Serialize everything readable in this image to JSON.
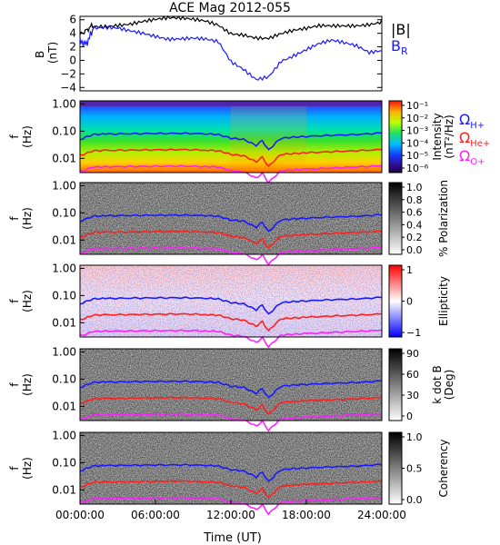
{
  "chart_data": {
    "type": "multi-panel spectrogram",
    "title": "ACE Mag 2012-055",
    "xlabel": "Time (UT)",
    "x_ticks": [
      "00:00:00",
      "06:00:00",
      "12:00:00",
      "18:00:00",
      "24:00:00"
    ],
    "x_range_hours": [
      0,
      24
    ],
    "field_panel": {
      "ylabel_line1": "B",
      "ylabel_line2": "(nT)",
      "y_ticks": [
        "6",
        "4",
        "2",
        "0",
        "−2",
        "−4"
      ],
      "ylim": [
        -4.5,
        6.5
      ],
      "legend": [
        {
          "label": "|B|",
          "color": "#000000"
        },
        {
          "label": "B",
          "subscript": "R",
          "color": "#1a1aff"
        }
      ],
      "series": [
        {
          "name": "|B|",
          "color": "#000000",
          "x": [
            0,
            0.5,
            1,
            2,
            3,
            4,
            5,
            6,
            7,
            8,
            9,
            10,
            11,
            12,
            13,
            14,
            15,
            16,
            17,
            18,
            19,
            20,
            21,
            22,
            23,
            24
          ],
          "values": [
            3.8,
            4.4,
            5.2,
            5.3,
            5.5,
            5.6,
            5.8,
            5.9,
            6.0,
            5.9,
            5.8,
            5.7,
            5.3,
            4.2,
            4.1,
            3.6,
            3.4,
            3.9,
            4.2,
            4.4,
            4.8,
            4.9,
            5.1,
            5.3,
            5.6,
            6.0
          ]
        },
        {
          "name": "B_R",
          "color": "#1a1aff",
          "x": [
            0,
            0.5,
            1,
            2,
            3,
            4,
            5,
            6,
            7,
            8,
            9,
            10,
            11,
            12,
            13,
            14,
            15,
            16,
            17,
            18,
            19,
            20,
            21,
            22,
            23,
            24
          ],
          "values": [
            2.8,
            2.4,
            4.4,
            4.6,
            4.7,
            4.5,
            4.3,
            3.9,
            3.4,
            3.3,
            3.2,
            2.9,
            2.4,
            -0.5,
            -1.5,
            -2.8,
            -2.2,
            0.2,
            1.0,
            1.8,
            2.5,
            2.8,
            2.3,
            1.8,
            0.9,
            1.4
          ]
        }
      ]
    },
    "freq_axis": {
      "ylabel_line1": "f",
      "ylabel_line2": "(Hz)",
      "y_ticks": [
        "1.00",
        "0.10",
        "0.01"
      ],
      "ylim_log": [
        0.003,
        1.3
      ]
    },
    "gyrofrequency_lines": [
      {
        "name": "Ω_H+",
        "symbol": "Ω",
        "sub": "H+",
        "color": "#1a1aff",
        "x": [
          0,
          0.5,
          1,
          2,
          4,
          6,
          8,
          10,
          11,
          12,
          13,
          14,
          14.5,
          15,
          15.5,
          16,
          17,
          18,
          20,
          22,
          24
        ],
        "values": [
          0.05,
          0.06,
          0.075,
          0.078,
          0.08,
          0.082,
          0.083,
          0.08,
          0.075,
          0.055,
          0.05,
          0.03,
          0.045,
          0.02,
          0.035,
          0.055,
          0.06,
          0.064,
          0.07,
          0.075,
          0.085
        ]
      },
      {
        "name": "Ω_He+",
        "symbol": "Ω",
        "sub": "He+",
        "color": "#ff2020",
        "x": [
          0,
          0.5,
          1,
          2,
          4,
          6,
          8,
          10,
          11,
          12,
          13,
          14,
          14.5,
          15,
          15.5,
          16,
          17,
          18,
          20,
          22,
          24
        ],
        "values": [
          0.013,
          0.015,
          0.019,
          0.0195,
          0.02,
          0.0205,
          0.021,
          0.02,
          0.019,
          0.014,
          0.0125,
          0.0075,
          0.011,
          0.005,
          0.0088,
          0.014,
          0.015,
          0.016,
          0.0175,
          0.019,
          0.021
        ]
      },
      {
        "name": "Ω_O+",
        "symbol": "Ω",
        "sub": "O+",
        "color": "#ff20ff",
        "x": [
          0,
          0.5,
          1,
          2,
          4,
          6,
          8,
          10,
          11,
          12,
          13,
          14,
          14.5,
          15,
          15.5,
          16,
          17,
          18,
          20,
          22,
          24
        ],
        "values": [
          0.0033,
          0.0038,
          0.0048,
          0.0049,
          0.005,
          0.0051,
          0.0052,
          0.005,
          0.0048,
          0.0035,
          0.0032,
          0.0019,
          0.0028,
          0.0013,
          0.0022,
          0.0035,
          0.0038,
          0.004,
          0.0044,
          0.0048,
          0.0053
        ]
      }
    ],
    "panels": [
      {
        "id": "intensity",
        "colormap": "rainbow",
        "colorbar_ticks": [
          "10⁻¹",
          "10⁻²",
          "10⁻³",
          "10⁻⁴",
          "10⁻⁵",
          "10⁻⁶"
        ],
        "colorbar_label_line1": "Intensity",
        "colorbar_label_line2": "(nT²/Hz)"
      },
      {
        "id": "polarization",
        "colormap": "gray",
        "colorbar_ticks": [
          "1.0",
          "0.8",
          "0.6",
          "0.4",
          "0.2",
          "0.0"
        ],
        "colorbar_label_line1": "% Polarization",
        "colorbar_label_line2": ""
      },
      {
        "id": "ellipticity",
        "colormap": "bluewhitered",
        "colorbar_ticks": [
          "1",
          "0",
          "−1"
        ],
        "colorbar_label_line1": "Ellipticity",
        "colorbar_label_line2": ""
      },
      {
        "id": "kdotb",
        "colormap": "gray",
        "colorbar_ticks": [
          "90",
          "60",
          "30",
          "0"
        ],
        "colorbar_label_line1": "k dot B",
        "colorbar_label_line2": "(Deg)"
      },
      {
        "id": "coherency",
        "colormap": "gray",
        "colorbar_ticks": [
          "1.0",
          "0.5",
          "0.0"
        ],
        "colorbar_label_line1": "Coherency",
        "colorbar_label_line2": ""
      }
    ]
  }
}
